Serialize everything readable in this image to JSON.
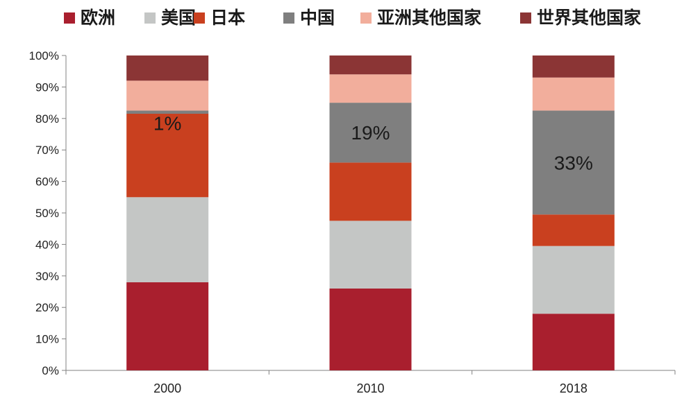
{
  "chart_data": {
    "type": "bar",
    "stacked": true,
    "percent_stacked": true,
    "categories": [
      "2000",
      "2010",
      "2018"
    ],
    "series": [
      {
        "name": "欧洲",
        "color": "#a91f2e",
        "values": [
          28,
          26,
          18
        ]
      },
      {
        "name": "美国",
        "color": "#c4c6c5",
        "values": [
          27,
          21.5,
          21.5
        ]
      },
      {
        "name": "日本",
        "color": "#c9401f",
        "values": [
          26.5,
          18.5,
          10
        ]
      },
      {
        "name": "中国",
        "color": "#7f7f7f",
        "values": [
          1,
          19,
          33
        ]
      },
      {
        "name": "亚洲其他国家",
        "color": "#f2ae9c",
        "values": [
          9.5,
          9,
          10.5
        ]
      },
      {
        "name": "世界其他国家",
        "color": "#8b3535",
        "values": [
          8,
          6,
          7
        ]
      }
    ],
    "data_labels": [
      {
        "category": "2000",
        "series": "中国",
        "text": "1%"
      },
      {
        "category": "2010",
        "series": "中国",
        "text": "19%"
      },
      {
        "category": "2018",
        "series": "中国",
        "text": "33%"
      }
    ],
    "ylim": [
      0,
      100
    ],
    "yticks": [
      "0%",
      "10%",
      "20%",
      "30%",
      "40%",
      "50%",
      "60%",
      "70%",
      "80%",
      "90%",
      "100%"
    ],
    "legend_position": "top",
    "grid": false
  }
}
